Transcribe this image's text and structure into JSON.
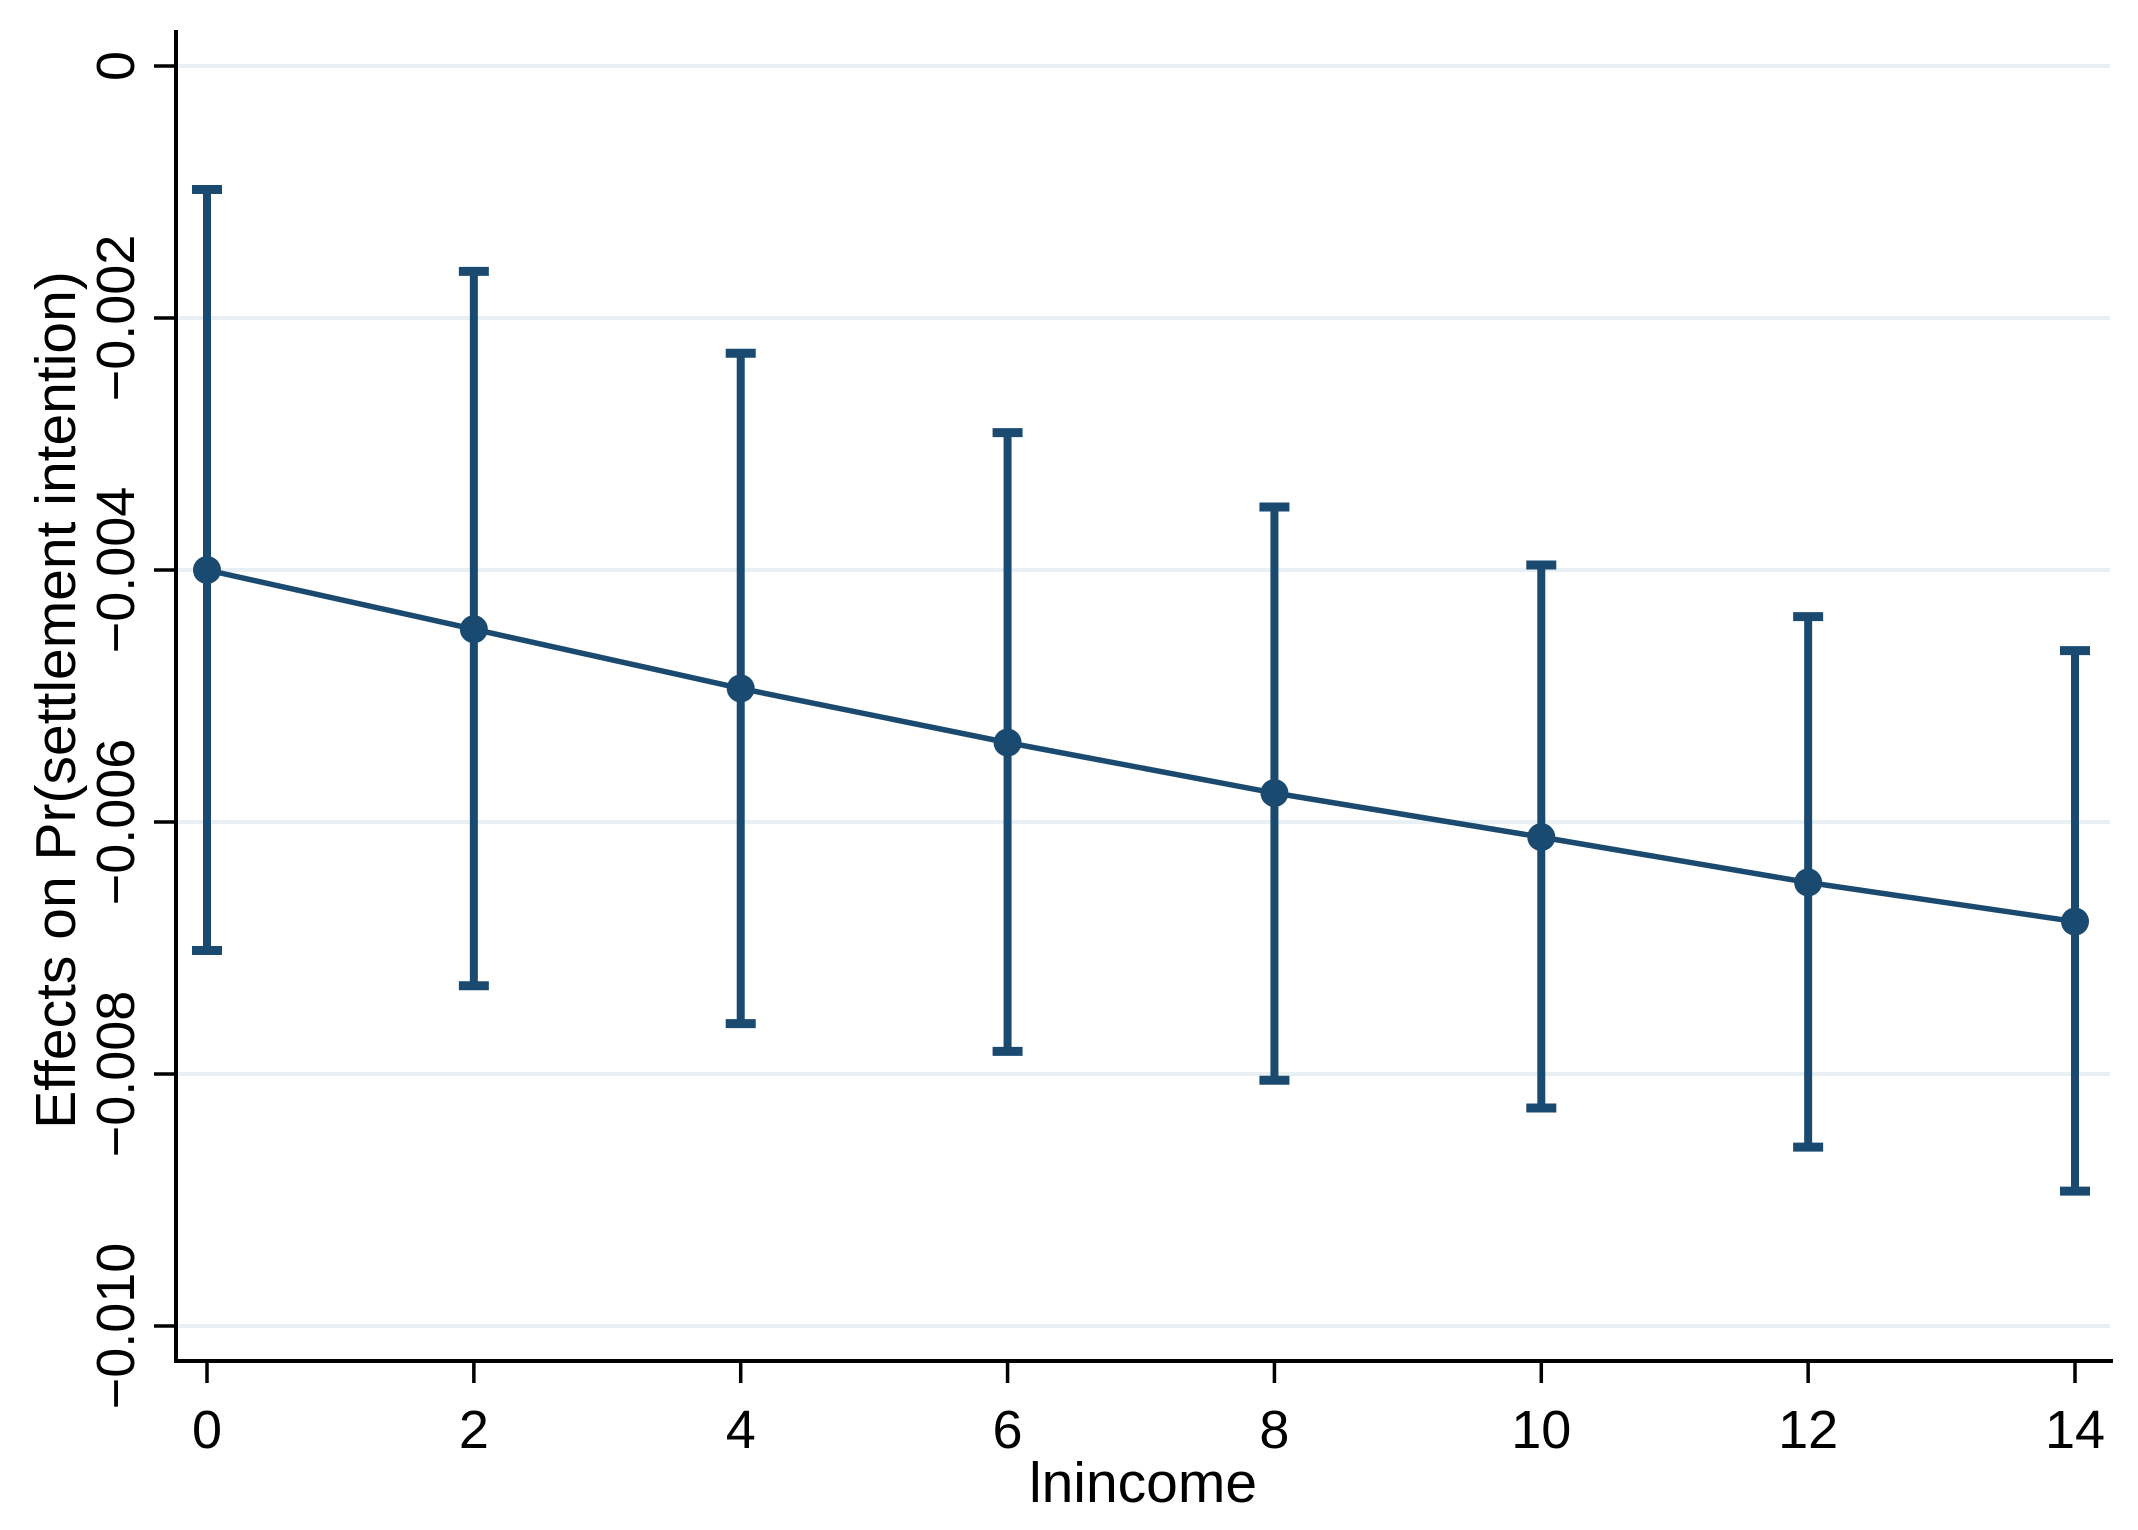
{
  "chart_data": {
    "type": "line",
    "title": "",
    "xlabel": "lnincome",
    "ylabel": "Effects on Pr(settlement intention)",
    "x": [
      0,
      2,
      4,
      6,
      8,
      10,
      12,
      14
    ],
    "series": [
      {
        "name": "Effects on Pr(settlement intention)",
        "values": [
          -0.004,
          -0.00447,
          -0.00494,
          -0.00537,
          -0.00577,
          -0.00612,
          -0.00648,
          -0.00679
        ],
        "ci_low": [
          -0.00702,
          -0.0073,
          -0.0076,
          -0.00782,
          -0.00805,
          -0.00827,
          -0.00858,
          -0.00893
        ],
        "ci_high": [
          -0.00098,
          -0.00163,
          -0.00228,
          -0.00291,
          -0.0035,
          -0.00396,
          -0.00437,
          -0.00464
        ]
      }
    ],
    "x_ticks": {
      "values": [
        0,
        2,
        4,
        6,
        8,
        10,
        12,
        14
      ],
      "labels": [
        "0",
        "2",
        "4",
        "6",
        "8",
        "10",
        "12",
        "14"
      ]
    },
    "y_ticks": {
      "values": [
        0,
        -0.002,
        -0.004,
        -0.006,
        -0.008,
        -0.01
      ],
      "labels": [
        "0",
        "−0.002",
        "−0.004",
        "−0.006",
        "−0.008",
        "−0.010"
      ]
    },
    "xlim": [
      -0.23,
      14.29
    ],
    "ylim": [
      -0.01028,
      0.00029
    ],
    "grid": "horizontal-only",
    "legend": "none",
    "marker": "circle",
    "error_bars": true,
    "colors": {
      "series": "#1b4a70",
      "grid": "#e9f0f4",
      "axis": "#000000",
      "text": "#000000",
      "background": "#ffffff"
    }
  }
}
